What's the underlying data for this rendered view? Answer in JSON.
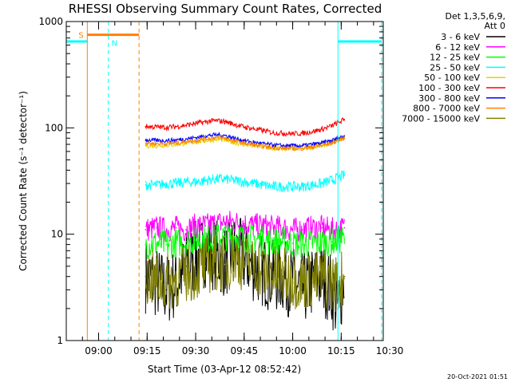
{
  "chart_data": {
    "type": "line",
    "title": "RHESSI Observing Summary Count Rates, Corrected",
    "xlabel": "Start Time (03-Apr-12 08:52:42)",
    "ylabel": "Corrected Count Rate (s⁻¹ detector⁻¹)",
    "y_scale": "log",
    "ylim": [
      1,
      1000
    ],
    "y_ticks": [
      {
        "value": 1,
        "label": "1"
      },
      {
        "value": 10,
        "label": "10"
      },
      {
        "value": 100,
        "label": "100"
      },
      {
        "value": 1000,
        "label": "1000"
      }
    ],
    "x_range_min": [
      -2,
      96
    ],
    "x_ticks": [
      {
        "value": 8,
        "label": "09:00"
      },
      {
        "value": 23,
        "label": "09:15"
      },
      {
        "value": 38,
        "label": "09:30"
      },
      {
        "value": 53,
        "label": "09:45"
      },
      {
        "value": 68,
        "label": "10:00"
      },
      {
        "value": 83,
        "label": "10:15"
      },
      {
        "value": 98,
        "label": "10:30"
      }
    ],
    "legend": {
      "placement": "right",
      "header": [
        "Det 1,3,5,6,9,",
        "Att 0"
      ]
    },
    "series": [
      {
        "name": "3 - 6 keV",
        "color": "#000000",
        "x": [
          22.5,
          26,
          29,
          32,
          35,
          38,
          41,
          44,
          47,
          50,
          53,
          56,
          59,
          62,
          65,
          68,
          71,
          74,
          77,
          80,
          82,
          84
        ],
        "values": [
          4,
          3.5,
          3,
          3.5,
          5,
          6,
          7,
          6.5,
          5.5,
          7,
          6,
          5,
          4.5,
          4,
          4,
          3.5,
          3,
          3.5,
          4,
          3,
          2,
          4
        ]
      },
      {
        "name": "6 - 12 keV",
        "color": "#ff00ff",
        "x": [
          22.5,
          26,
          29,
          32,
          35,
          38,
          41,
          44,
          47,
          50,
          53,
          56,
          59,
          62,
          65,
          68,
          71,
          74,
          77,
          80,
          82,
          84
        ],
        "values": [
          11,
          11.5,
          11,
          11.5,
          11,
          12,
          12,
          12.5,
          13,
          13,
          12.5,
          12,
          12,
          11.5,
          11.5,
          11,
          11,
          11.5,
          11.5,
          11,
          11,
          11.5
        ]
      },
      {
        "name": "12 - 25 keV",
        "color": "#00ff00",
        "x": [
          22.5,
          26,
          29,
          32,
          35,
          38,
          41,
          44,
          47,
          50,
          53,
          56,
          59,
          62,
          65,
          68,
          71,
          74,
          77,
          80,
          82,
          84
        ],
        "values": [
          8,
          8.2,
          8,
          8.3,
          8.5,
          8.8,
          9,
          9.2,
          9.5,
          9.5,
          9.2,
          9,
          8.8,
          8.5,
          8.5,
          8.2,
          8,
          8.2,
          8.3,
          8.5,
          8.8,
          9
        ]
      },
      {
        "name": "25 - 50 keV",
        "color": "#00ffff",
        "x": [
          22.5,
          26,
          29,
          32,
          35,
          38,
          41,
          44,
          47,
          50,
          53,
          56,
          59,
          62,
          65,
          68,
          71,
          74,
          77,
          80,
          82,
          84
        ],
        "values": [
          29,
          29,
          30,
          30,
          31,
          31,
          32,
          33,
          33,
          32,
          31,
          30,
          29,
          28,
          28,
          28,
          28,
          29,
          30,
          32,
          34,
          36
        ]
      },
      {
        "name": "50 - 100 keV",
        "color": "#e8d000",
        "x": [
          22.5,
          26,
          29,
          32,
          35,
          38,
          41,
          44,
          47,
          50,
          53,
          56,
          59,
          62,
          65,
          68,
          71,
          74,
          77,
          80,
          82,
          84
        ],
        "values": [
          68,
          68,
          69,
          70,
          72,
          74,
          76,
          78,
          77,
          73,
          70,
          68,
          66,
          64,
          64,
          64,
          64,
          66,
          68,
          72,
          77,
          82
        ]
      },
      {
        "name": "100 - 300 keV",
        "color": "#ff0000",
        "x": [
          22.5,
          26,
          29,
          32,
          35,
          38,
          41,
          44,
          47,
          50,
          53,
          56,
          59,
          62,
          65,
          68,
          71,
          74,
          77,
          80,
          82,
          84
        ],
        "values": [
          103,
          102,
          101,
          103,
          106,
          110,
          114,
          117,
          115,
          108,
          102,
          98,
          94,
          90,
          89,
          88,
          89,
          92,
          97,
          104,
          112,
          120
        ]
      },
      {
        "name": "300 - 800 keV",
        "color": "#0000ff",
        "x": [
          22.5,
          26,
          29,
          32,
          35,
          38,
          41,
          44,
          47,
          50,
          53,
          56,
          59,
          62,
          65,
          68,
          71,
          74,
          77,
          80,
          82,
          84
        ],
        "values": [
          77,
          76,
          76,
          77,
          79,
          81,
          84,
          86,
          85,
          80,
          76,
          73,
          71,
          69,
          68,
          68,
          68,
          70,
          72,
          76,
          80,
          84
        ]
      },
      {
        "name": "800 - 7000 keV",
        "color": "#ff8000",
        "x": [
          22.5,
          26,
          29,
          32,
          35,
          38,
          41,
          44,
          47,
          50,
          53,
          56,
          59,
          62,
          65,
          68,
          71,
          74,
          77,
          80,
          82,
          84
        ],
        "values": [
          72,
          71,
          71,
          72,
          74,
          76,
          79,
          81,
          80,
          75,
          72,
          69,
          67,
          65,
          64,
          64,
          64,
          66,
          68,
          72,
          76,
          80
        ]
      },
      {
        "name": "7000 - 15000 keV",
        "color": "#808000",
        "x": [
          22.5,
          26,
          29,
          32,
          35,
          38,
          41,
          44,
          47,
          50,
          53,
          56,
          59,
          62,
          65,
          68,
          71,
          74,
          77,
          80,
          82,
          84
        ],
        "values": [
          4,
          3.6,
          3.5,
          3.8,
          4.2,
          4.5,
          5,
          5.5,
          5.2,
          6,
          5.5,
          5,
          4.5,
          4.2,
          4,
          3.8,
          3.6,
          3.7,
          3.8,
          3.5,
          3.5,
          4
        ]
      }
    ],
    "annotations": {
      "saa_label": "S",
      "night_label": "N",
      "saa_band": {
        "x_start": 4.5,
        "x_end": 20.5,
        "value": 750,
        "color": "#ff8000"
      },
      "night_bands": [
        {
          "x_start": -2,
          "x_end": 4.5,
          "value": 650,
          "color": "#00ffff"
        },
        {
          "x_start": 82,
          "x_end": 95.5,
          "value": 650,
          "color": "#00ffff"
        }
      ],
      "vertical_lines": [
        {
          "x": 4.5,
          "color": "#ff8000",
          "style": "solid"
        },
        {
          "x": 20.5,
          "color": "#ff8000",
          "style": "dashed"
        },
        {
          "x": 11,
          "color": "#00ffff",
          "style": "dashed"
        },
        {
          "x": 82,
          "color": "#00ffff",
          "style": "solid"
        },
        {
          "x": 95.5,
          "color": "#00ffff",
          "style": "dashed"
        },
        {
          "x": -2,
          "color": "#00ffff",
          "style": "solid"
        }
      ]
    }
  },
  "footer": {
    "timestamp": "20-Oct-2021 01:51"
  }
}
